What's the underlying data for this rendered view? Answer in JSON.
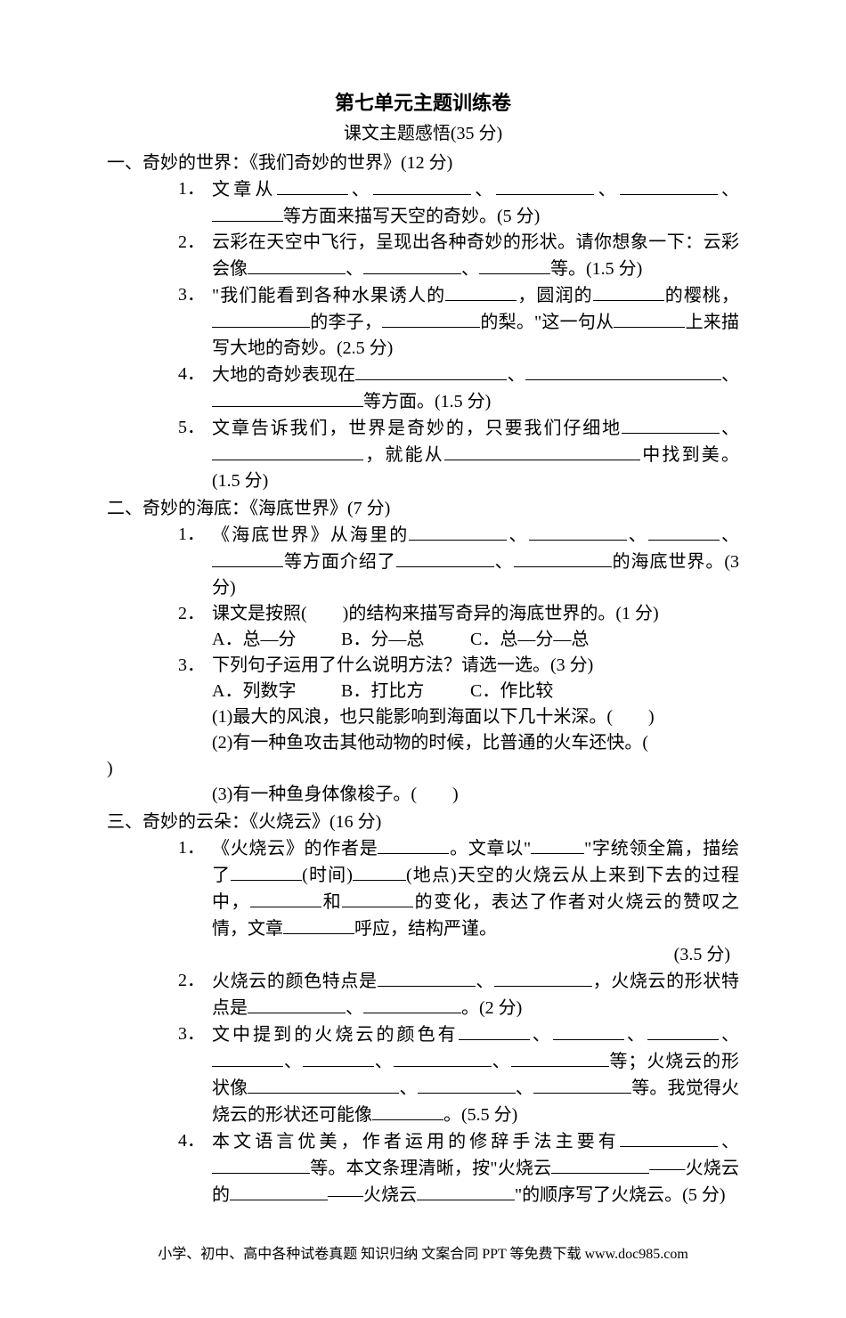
{
  "title": "第七单元主题训练卷",
  "subtitle": "课文主题感悟(35 分)",
  "footer": "小学、初中、高中各种试卷真题 知识归纳 文案合同 PPT 等免费下载 www.doc985.com",
  "sections": {
    "s1": {
      "head": "一、奇妙的世界：《我们奇妙的世界》(12 分)",
      "q1": {
        "num": "1．",
        "pre": "文章从",
        "tail": "等方面来描写天空的奇妙。(5 分)"
      },
      "q2": {
        "num": "2．",
        "text_a": "云彩在天空中飞行，呈现出各种奇妙的形状。请你想象一下：云彩会像",
        "tail": "等。(1.5 分)"
      },
      "q3": {
        "num": "3．",
        "a": "\"我们能看到各种水果诱人的",
        "b": "，圆润的",
        "c": "的樱桃，",
        "d": "的李子，",
        "e": "的梨。\"这一句从",
        "tail": "上来描写大地的奇妙。(2.5 分)"
      },
      "q4": {
        "num": "4．",
        "a": "大地的奇妙表现在",
        "tail": "等方面。(1.5 分)"
      },
      "q5": {
        "num": "5．",
        "a": "文章告诉我们，世界是奇妙的，只要我们仔细地",
        "b": "，就能从",
        "c": "中找到美。(1.5 分)"
      }
    },
    "s2": {
      "head": "二、奇妙的海底：《海底世界》(7 分)",
      "q1": {
        "num": "1．",
        "a": "《海底世界》从海里的",
        "b": "等方面介绍了",
        "c": "的海底世界。(3 分)"
      },
      "q2": {
        "num": "2．",
        "text": "课文是按照(　　)的结构来描写奇异的海底世界的。(1 分)",
        "optA": "A．总—分",
        "optB": "B．分—总",
        "optC": "C．总—分—总"
      },
      "q3": {
        "num": "3．",
        "text": "下列句子运用了什么说明方法？请选一选。(3 分)",
        "optA": "A．列数字",
        "optB": "B．打比方",
        "optC": "C．作比较",
        "sub1": "(1)最大的风浪，也只能影响到海面以下几十米深。(　　)",
        "sub2": "(2)有一种鱼攻击其他动物的时候，比普通的火车还快。(　　",
        "sub2close": ")",
        "sub3": "(3)有一种鱼身体像梭子。(　　)"
      }
    },
    "s3": {
      "head": "三、奇妙的云朵：《火烧云》(16 分)",
      "q1": {
        "num": "1．",
        "a": "《火烧云》的作者是",
        "b": "。文章以\"",
        "c": "\"字统领全篇，描绘了",
        "d": "(时间)",
        "e": "(地点)天空的火烧云从上来到下去的过程中，",
        "f": "和",
        "g": "的变化，表达了作者对火烧云的赞叹之情，文章",
        "h": "呼应，结构严谨。",
        "score": "(3.5 分)"
      },
      "q2": {
        "num": "2．",
        "a": "火烧云的颜色特点是",
        "b": "，火烧云的形状特点是",
        "c": "。(2 分)"
      },
      "q3": {
        "num": "3．",
        "a": "文中提到的火烧云的颜色有",
        "b": "等；火烧云的形状像",
        "c": "等。我觉得火烧云的形状还可能像",
        "d": "。(5.5 分)"
      },
      "q4": {
        "num": "4．",
        "a": "本文语言优美，作者运用的修辞手法主要有",
        "b": "等。本文条理清晰，按\"火烧云",
        "c": "——火烧云的",
        "d": "——火烧云",
        "e": "\"的顺序写了火烧云。(5 分)"
      }
    }
  }
}
